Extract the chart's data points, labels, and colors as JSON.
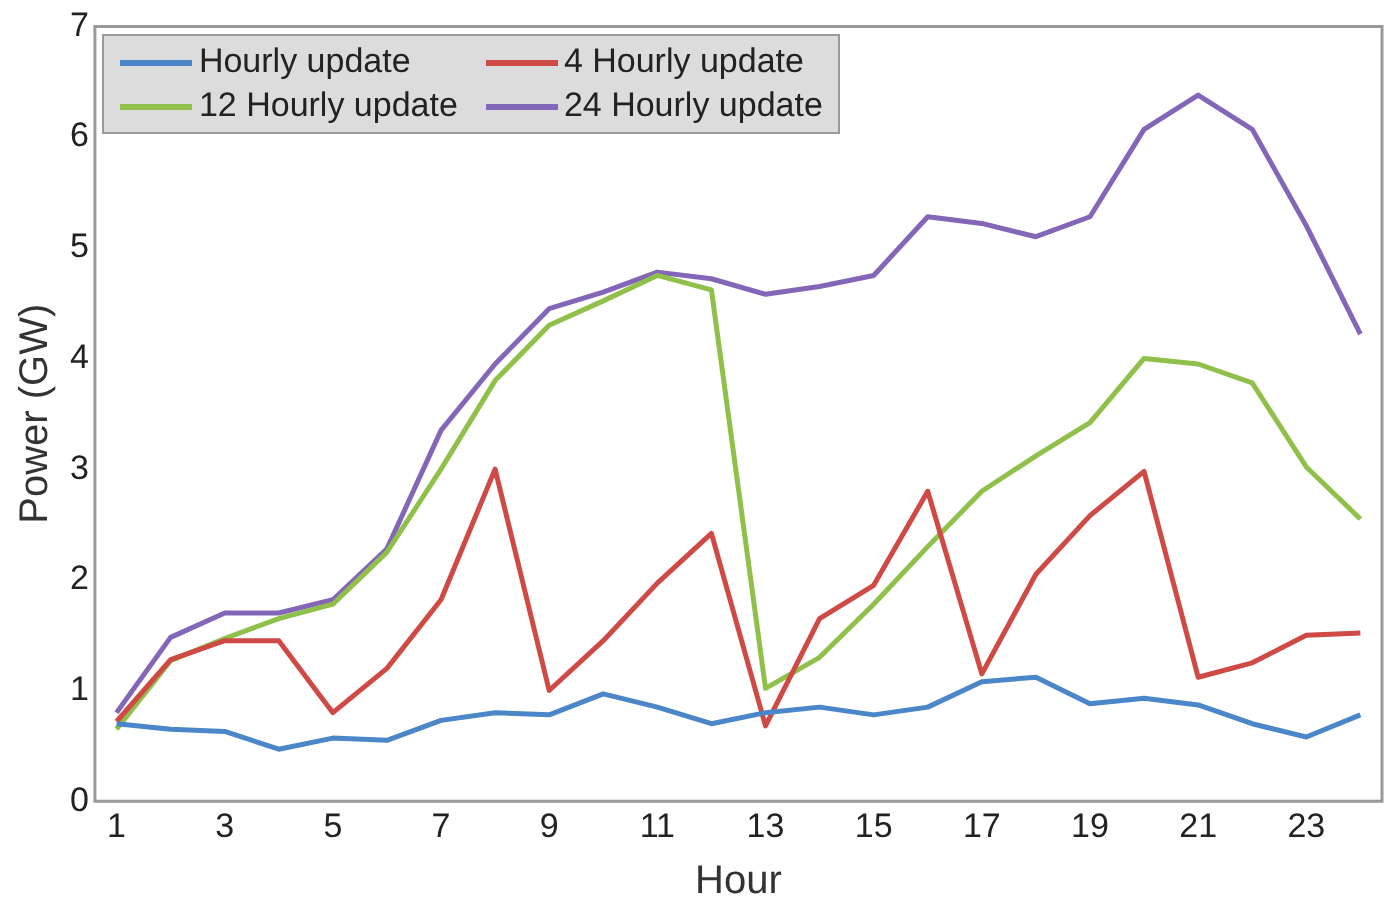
{
  "chart_data": {
    "type": "line",
    "xlabel": "Hour",
    "ylabel": "Power (GW)",
    "x": [
      1,
      2,
      3,
      4,
      5,
      6,
      7,
      8,
      9,
      10,
      11,
      12,
      13,
      14,
      15,
      16,
      17,
      18,
      19,
      20,
      21,
      22,
      23,
      24
    ],
    "series": [
      {
        "name": "Hourly update",
        "color": "#4a86c8",
        "values": [
          0.7,
          0.65,
          0.63,
          0.47,
          0.57,
          0.55,
          0.73,
          0.8,
          0.78,
          0.97,
          0.85,
          0.7,
          0.8,
          0.85,
          0.78,
          0.85,
          1.08,
          1.12,
          0.88,
          0.93,
          0.87,
          0.7,
          0.58,
          0.78
        ]
      },
      {
        "name": "4 Hourly update",
        "color": "#d04a45",
        "values": [
          0.72,
          1.28,
          1.45,
          1.45,
          0.8,
          1.2,
          1.82,
          3.0,
          1.0,
          1.45,
          1.97,
          2.42,
          0.68,
          1.65,
          1.95,
          2.8,
          1.15,
          2.05,
          2.58,
          2.98,
          1.12,
          1.25,
          1.5,
          1.52
        ]
      },
      {
        "name": "12 Hourly update",
        "color": "#8fc04a",
        "values": [
          0.65,
          1.27,
          1.47,
          1.65,
          1.78,
          2.25,
          3.0,
          3.8,
          4.3,
          4.52,
          4.75,
          4.62,
          1.02,
          1.3,
          1.78,
          2.3,
          2.8,
          3.12,
          3.42,
          4.0,
          3.95,
          3.78,
          3.02,
          2.55
        ]
      },
      {
        "name": "24 Hourly update",
        "color": "#8466b8",
        "values": [
          0.8,
          1.48,
          1.7,
          1.7,
          1.82,
          2.28,
          3.35,
          3.95,
          4.45,
          4.6,
          4.78,
          4.72,
          4.58,
          4.65,
          4.75,
          5.28,
          5.22,
          5.1,
          5.28,
          6.07,
          6.38,
          6.07,
          5.2,
          4.22
        ]
      }
    ],
    "xlim": [
      0.6,
      24.4
    ],
    "xticks": [
      1,
      3,
      5,
      7,
      9,
      11,
      13,
      15,
      17,
      19,
      21,
      23
    ],
    "ylim": [
      0,
      7
    ],
    "yticks": [
      0,
      1,
      2,
      3,
      4,
      5,
      6,
      7
    ],
    "grid": false,
    "legend": "top left",
    "marker": "none",
    "line_style": "solid"
  }
}
